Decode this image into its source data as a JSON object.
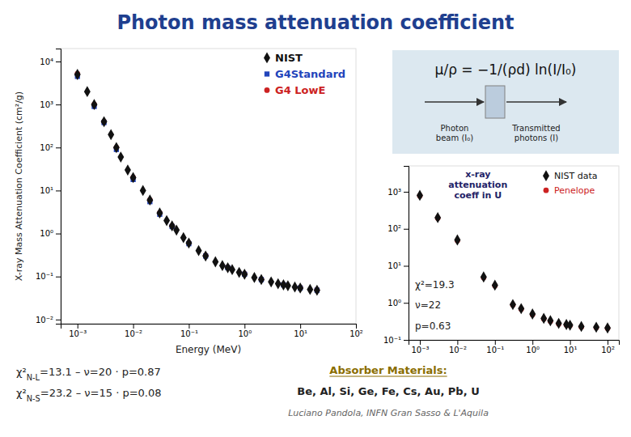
{
  "chart_data": [
    {
      "type": "scatter",
      "title": "Photon mass attenuation coefficient",
      "xlabel": "Energy (MeV)",
      "ylabel": "X-ray Mass Attenuation Coefficient (cm²/g)",
      "log": true,
      "xlim": [
        0.0005,
        100
      ],
      "ylim": [
        0.008,
        20000
      ],
      "xticks": [
        {
          "value": 0.001,
          "label": "10⁻³"
        },
        {
          "value": 0.01,
          "label": "10⁻²"
        },
        {
          "value": 0.1,
          "label": "10⁻¹"
        },
        {
          "value": 1,
          "label": "10⁰"
        },
        {
          "value": 10,
          "label": "10¹"
        },
        {
          "value": 100,
          "label": "10²"
        }
      ],
      "yticks": [
        {
          "value": 0.01,
          "label": "10⁻²"
        },
        {
          "value": 0.1,
          "label": "10⁻¹"
        },
        {
          "value": 1,
          "label": "10⁰"
        },
        {
          "value": 10,
          "label": "10¹"
        },
        {
          "value": 100,
          "label": "10²"
        },
        {
          "value": 1000,
          "label": "10³"
        },
        {
          "value": 10000,
          "label": "10⁴"
        }
      ],
      "grid": false,
      "legend": "upper right",
      "series": [
        {
          "name": "NIST",
          "color": "#111111",
          "marker": "diamond",
          "x": [
            0.001,
            0.0015,
            0.002,
            0.003,
            0.004,
            0.005,
            0.006,
            0.008,
            0.01,
            0.015,
            0.02,
            0.03,
            0.04,
            0.05,
            0.06,
            0.08,
            0.1,
            0.15,
            0.2,
            0.3,
            0.4,
            0.5,
            0.6,
            0.8,
            1.0,
            1.5,
            2.0,
            3.0,
            4.0,
            5.0,
            6.0,
            8.0,
            10.0,
            15.0,
            20.0
          ],
          "values": [
            5000,
            2000,
            1000,
            400,
            200,
            100,
            60,
            30,
            20,
            10,
            6,
            3.0,
            2.0,
            1.5,
            1.2,
            0.8,
            0.6,
            0.4,
            0.3,
            0.22,
            0.18,
            0.16,
            0.145,
            0.125,
            0.113,
            0.095,
            0.085,
            0.075,
            0.068,
            0.064,
            0.061,
            0.057,
            0.054,
            0.05,
            0.048
          ]
        },
        {
          "name": "G4Standard",
          "color": "#2244BB",
          "marker": "square",
          "x": [
            0.001,
            0.002,
            0.003,
            0.005,
            0.01,
            0.02,
            0.03,
            0.05,
            0.1,
            0.2,
            0.5,
            1.0,
            2.0,
            5.0,
            10.0,
            20.0
          ],
          "values": [
            4500,
            900,
            380,
            90,
            18,
            5.5,
            2.8,
            1.45,
            0.58,
            0.3,
            0.16,
            0.113,
            0.085,
            0.064,
            0.054,
            0.048
          ]
        },
        {
          "name": "G4 LowE",
          "color": "#CC2222",
          "marker": "circle",
          "x": [
            0.001,
            0.002,
            0.003,
            0.005,
            0.01,
            0.02,
            0.03,
            0.05,
            0.1,
            0.2,
            0.5,
            1.0,
            2.0,
            5.0,
            10.0,
            20.0
          ],
          "values": [
            5200,
            1000,
            400,
            100,
            20,
            6.0,
            3.0,
            1.5,
            0.6,
            0.31,
            0.163,
            0.115,
            0.086,
            0.065,
            0.055,
            0.049
          ]
        }
      ],
      "annotations": [
        {
          "text": "χ²",
          "subscript": "N-L",
          "after": "=13.1 – ν=20 · p=0.87"
        },
        {
          "text": "χ²",
          "subscript": "N-S",
          "after": "=23.2 – ν=15 · p=0.08"
        },
        {
          "text": "Absorber Materials:"
        },
        {
          "text": "Be, Al, Si, Ge, Fe, Cs, Au, Pb, U"
        },
        {
          "text": "Luciano Pandola, INFN Gran Sasso & L'Aquila"
        }
      ]
    },
    {
      "type": "scatter",
      "log": true,
      "xlim": [
        0.0005,
        200
      ],
      "ylim": [
        0.1,
        5000
      ],
      "xticks": [
        {
          "value": 0.001,
          "label": "10⁻³"
        },
        {
          "value": 0.01,
          "label": "10⁻²"
        },
        {
          "value": 0.1,
          "label": "10⁻¹"
        },
        {
          "value": 1,
          "label": "10⁰"
        },
        {
          "value": 10,
          "label": "10¹"
        },
        {
          "value": 100,
          "label": "10²"
        }
      ],
      "yticks": [
        {
          "value": 0.1,
          "label": "10⁻¹"
        },
        {
          "value": 1,
          "label": "10⁰"
        },
        {
          "value": 10,
          "label": "10¹"
        },
        {
          "value": 100,
          "label": "10²"
        },
        {
          "value": 1000,
          "label": "10³"
        }
      ],
      "grid": false,
      "legend": "upper right",
      "series": [
        {
          "name": "NIST data",
          "color": "#111111",
          "marker": "diamond",
          "x": [
            0.001,
            0.003,
            0.01,
            0.05,
            0.1,
            0.3,
            0.5,
            1.0,
            2.0,
            3.0,
            5.0,
            8.0,
            10.0,
            20.0,
            50.0,
            100.0
          ],
          "values": [
            800,
            200,
            50,
            5.0,
            3.0,
            0.9,
            0.7,
            0.5,
            0.38,
            0.33,
            0.28,
            0.26,
            0.25,
            0.23,
            0.22,
            0.21
          ]
        },
        {
          "name": "Penelope",
          "color": "#CC2222",
          "marker": "circle",
          "x": [
            0.001,
            0.003,
            0.01,
            0.05,
            0.1,
            0.3,
            0.5,
            1.0,
            2.0,
            3.0,
            5.0,
            8.0,
            10.0,
            20.0,
            50.0,
            100.0
          ],
          "values": [
            780,
            195,
            48,
            4.8,
            2.9,
            0.88,
            0.68,
            0.48,
            0.37,
            0.32,
            0.27,
            0.255,
            0.245,
            0.225,
            0.215,
            0.205
          ]
        }
      ],
      "annotations": [
        {
          "text": "x-ray\nattenuation\ncoeff in U"
        },
        {
          "text": "χ²=19.3"
        },
        {
          "text": "ν=22"
        },
        {
          "text": "p=0.63"
        },
        {
          "text": "μ/ρ = −1/(ρd) ln(I/I₀)"
        },
        {
          "text": "Photon\nbeam (I₀)"
        },
        {
          "text": "Transmitted\nphotons (I)"
        }
      ]
    }
  ]
}
